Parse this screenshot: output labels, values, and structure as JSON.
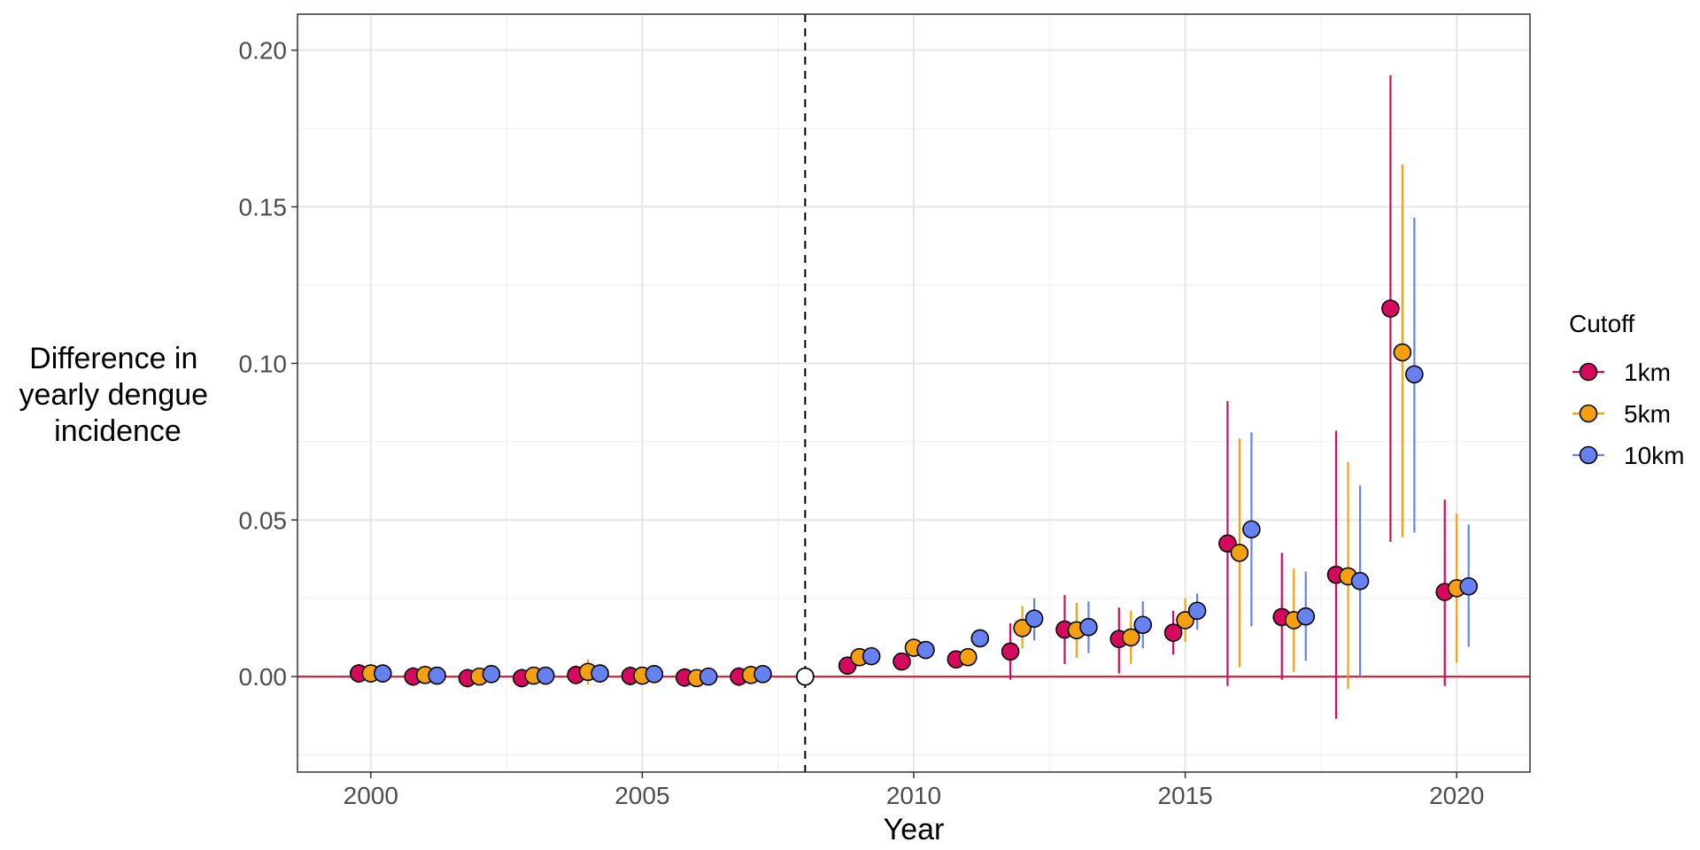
{
  "chart_data": {
    "type": "scatter",
    "title": "",
    "xlabel": "Year",
    "ylabel": [
      "Difference in",
      "yearly dengue",
      "incidence"
    ],
    "xlim": [
      1998.65,
      2021.35
    ],
    "ylim": [
      -0.0305,
      0.2115
    ],
    "x_ticks": [
      2000,
      2005,
      2010,
      2015,
      2020
    ],
    "x_tick_labels": [
      "2000",
      "2005",
      "2010",
      "2015",
      "2020"
    ],
    "y_ticks": [
      0.0,
      0.05,
      0.1,
      0.15,
      0.2
    ],
    "y_tick_labels": [
      "0.00",
      "0.05",
      "0.10",
      "0.15",
      "0.20"
    ],
    "grid": true,
    "reference_line_y": 0,
    "reference_line_color": "#e8112d",
    "event_line_x": 2008,
    "reference_point": {
      "x": 2008,
      "y": 0
    },
    "legend": {
      "title": "Cutoff",
      "placement": "right"
    },
    "dodge": 0.22,
    "series": [
      {
        "name": "1km",
        "color": "#d6095f",
        "points": [
          {
            "x": 2000,
            "y": 0.001,
            "lo": -0.002,
            "hi": 0.004
          },
          {
            "x": 2001,
            "y": 0.0,
            "lo": -0.003,
            "hi": 0.003
          },
          {
            "x": 2002,
            "y": -0.0005,
            "lo": -0.0035,
            "hi": 0.0025
          },
          {
            "x": 2003,
            "y": -0.0005,
            "lo": -0.0035,
            "hi": 0.0025
          },
          {
            "x": 2004,
            "y": 0.0005,
            "lo": -0.0025,
            "hi": 0.0035
          },
          {
            "x": 2005,
            "y": 0.0002,
            "lo": -0.0028,
            "hi": 0.0032
          },
          {
            "x": 2006,
            "y": -0.0003,
            "lo": -0.0033,
            "hi": 0.0027
          },
          {
            "x": 2007,
            "y": 0.0,
            "lo": -0.003,
            "hi": 0.003
          },
          {
            "x": 2009,
            "y": 0.0035,
            "lo": 0.0015,
            "hi": 0.0055
          },
          {
            "x": 2010,
            "y": 0.0048,
            "lo": 0.003,
            "hi": 0.0066
          },
          {
            "x": 2011,
            "y": 0.0055,
            "lo": 0.0035,
            "hi": 0.0075
          },
          {
            "x": 2012,
            "y": 0.008,
            "lo": -0.001,
            "hi": 0.017
          },
          {
            "x": 2013,
            "y": 0.015,
            "lo": 0.004,
            "hi": 0.026
          },
          {
            "x": 2014,
            "y": 0.012,
            "lo": 0.001,
            "hi": 0.022
          },
          {
            "x": 2015,
            "y": 0.014,
            "lo": 0.007,
            "hi": 0.021
          },
          {
            "x": 2016,
            "y": 0.0425,
            "lo": -0.003,
            "hi": 0.088
          },
          {
            "x": 2017,
            "y": 0.019,
            "lo": -0.001,
            "hi": 0.0395
          },
          {
            "x": 2018,
            "y": 0.0325,
            "lo": -0.0135,
            "hi": 0.0785
          },
          {
            "x": 2019,
            "y": 0.1175,
            "lo": 0.043,
            "hi": 0.192
          },
          {
            "x": 2020,
            "y": 0.027,
            "lo": -0.003,
            "hi": 0.0565
          }
        ]
      },
      {
        "name": "5km",
        "color": "#f5a00f",
        "points": [
          {
            "x": 2000,
            "y": 0.001,
            "lo": -0.0015,
            "hi": 0.0035
          },
          {
            "x": 2001,
            "y": 0.0005,
            "lo": -0.002,
            "hi": 0.003
          },
          {
            "x": 2002,
            "y": 0.0,
            "lo": -0.0025,
            "hi": 0.0025
          },
          {
            "x": 2003,
            "y": 0.0003,
            "lo": -0.0022,
            "hi": 0.0028
          },
          {
            "x": 2004,
            "y": 0.0015,
            "lo": -0.0025,
            "hi": 0.0055
          },
          {
            "x": 2005,
            "y": 0.0003,
            "lo": -0.0022,
            "hi": 0.0028
          },
          {
            "x": 2006,
            "y": -0.0005,
            "lo": -0.003,
            "hi": 0.002
          },
          {
            "x": 2007,
            "y": 0.0005,
            "lo": -0.002,
            "hi": 0.003
          },
          {
            "x": 2009,
            "y": 0.0062,
            "lo": 0.0045,
            "hi": 0.0079
          },
          {
            "x": 2010,
            "y": 0.0092,
            "lo": 0.0075,
            "hi": 0.0109
          },
          {
            "x": 2011,
            "y": 0.0062,
            "lo": 0.0045,
            "hi": 0.0079
          },
          {
            "x": 2012,
            "y": 0.0155,
            "lo": 0.009,
            "hi": 0.0225
          },
          {
            "x": 2013,
            "y": 0.0148,
            "lo": 0.006,
            "hi": 0.0235
          },
          {
            "x": 2014,
            "y": 0.0125,
            "lo": 0.004,
            "hi": 0.021
          },
          {
            "x": 2015,
            "y": 0.018,
            "lo": 0.011,
            "hi": 0.025
          },
          {
            "x": 2016,
            "y": 0.0395,
            "lo": 0.003,
            "hi": 0.076
          },
          {
            "x": 2017,
            "y": 0.018,
            "lo": 0.0015,
            "hi": 0.0345
          },
          {
            "x": 2018,
            "y": 0.032,
            "lo": -0.004,
            "hi": 0.0685
          },
          {
            "x": 2019,
            "y": 0.1035,
            "lo": 0.0445,
            "hi": 0.1635
          },
          {
            "x": 2020,
            "y": 0.0282,
            "lo": 0.0045,
            "hi": 0.052
          }
        ]
      },
      {
        "name": "10km",
        "color": "#6582f0",
        "points": [
          {
            "x": 2000,
            "y": 0.001,
            "lo": -0.001,
            "hi": 0.003
          },
          {
            "x": 2001,
            "y": 0.0003,
            "lo": -0.0017,
            "hi": 0.0023
          },
          {
            "x": 2002,
            "y": 0.0008,
            "lo": -0.0012,
            "hi": 0.0028
          },
          {
            "x": 2003,
            "y": 0.0003,
            "lo": -0.0017,
            "hi": 0.0023
          },
          {
            "x": 2004,
            "y": 0.001,
            "lo": -0.001,
            "hi": 0.003
          },
          {
            "x": 2005,
            "y": 0.0008,
            "lo": -0.0012,
            "hi": 0.0028
          },
          {
            "x": 2006,
            "y": 0.0,
            "lo": -0.002,
            "hi": 0.002
          },
          {
            "x": 2007,
            "y": 0.0008,
            "lo": -0.0012,
            "hi": 0.0028
          },
          {
            "x": 2009,
            "y": 0.0065,
            "lo": 0.005,
            "hi": 0.008
          },
          {
            "x": 2010,
            "y": 0.0085,
            "lo": 0.007,
            "hi": 0.01
          },
          {
            "x": 2011,
            "y": 0.0122,
            "lo": 0.0105,
            "hi": 0.0139
          },
          {
            "x": 2012,
            "y": 0.0185,
            "lo": 0.0115,
            "hi": 0.025
          },
          {
            "x": 2013,
            "y": 0.0158,
            "lo": 0.0075,
            "hi": 0.024
          },
          {
            "x": 2014,
            "y": 0.0165,
            "lo": 0.009,
            "hi": 0.024
          },
          {
            "x": 2015,
            "y": 0.021,
            "lo": 0.015,
            "hi": 0.0265
          },
          {
            "x": 2016,
            "y": 0.047,
            "lo": 0.016,
            "hi": 0.078
          },
          {
            "x": 2017,
            "y": 0.0192,
            "lo": 0.005,
            "hi": 0.0335
          },
          {
            "x": 2018,
            "y": 0.0305,
            "lo": 0.0,
            "hi": 0.061
          },
          {
            "x": 2019,
            "y": 0.0965,
            "lo": 0.046,
            "hi": 0.1465
          },
          {
            "x": 2020,
            "y": 0.0288,
            "lo": 0.0095,
            "hi": 0.0485
          }
        ]
      }
    ]
  }
}
